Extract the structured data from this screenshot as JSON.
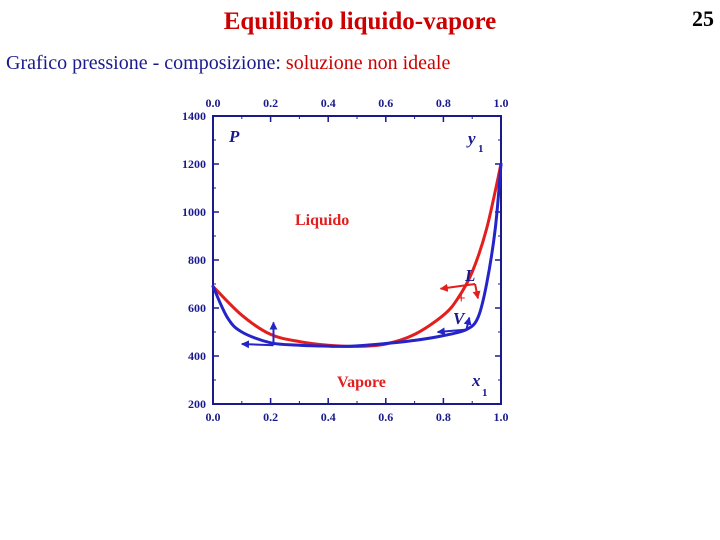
{
  "slide": {
    "title": "Equilibrio liquido-vapore",
    "page_number": "25",
    "subtitle_prefix": "Grafico pressione - composizione: ",
    "subtitle_highlight": "soluzione non ideale"
  },
  "colors": {
    "title": "#cc0000",
    "subtitle": "#1a1a8c",
    "liquid_curve": "#e31e1e",
    "vapor_curve": "#2424c8",
    "axis_tick_labels": "#1a1a8c",
    "region_label": "#e31e1e"
  },
  "chart_data": {
    "type": "line",
    "x_bottom_label": "x",
    "x_bottom_subscript": "1",
    "x_top_label": "y",
    "x_top_subscript": "1",
    "ylabel": "P",
    "xlim": [
      0.0,
      1.0
    ],
    "ylim": [
      200,
      1400
    ],
    "x_ticks": [
      "0.0",
      "0.2",
      "0.4",
      "0.6",
      "0.8",
      "1.0"
    ],
    "y_ticks": [
      "200",
      "400",
      "600",
      "800",
      "1000",
      "1200",
      "1400"
    ],
    "region_labels": {
      "liquid": "Liquido",
      "vapor": "Vapore"
    },
    "annotations": {
      "L": "L",
      "V": "V",
      "plus": "+"
    },
    "series": [
      {
        "key": "liquid",
        "x": [
          0.0,
          0.1,
          0.2,
          0.3,
          0.4,
          0.5,
          0.6,
          0.7,
          0.8,
          0.85,
          0.9,
          0.95,
          1.0
        ],
        "y": [
          690,
          570,
          490,
          460,
          445,
          440,
          450,
          490,
          570,
          640,
          750,
          930,
          1200
        ]
      },
      {
        "key": "vapor",
        "x": [
          0.0,
          0.05,
          0.1,
          0.2,
          0.3,
          0.4,
          0.45,
          0.5,
          0.6,
          0.7,
          0.8,
          0.88,
          0.92,
          0.95,
          0.98,
          1.0
        ],
        "y": [
          690,
          560,
          500,
          455,
          445,
          441,
          440,
          442,
          452,
          465,
          485,
          510,
          560,
          700,
          930,
          1200
        ]
      }
    ],
    "arrows": [
      {
        "x": [
          0.91,
          0.79
        ],
        "y": [
          700,
          680
        ]
      },
      {
        "x": [
          0.91,
          0.92
        ],
        "y": [
          700,
          640
        ]
      },
      {
        "x": [
          0.88,
          0.78
        ],
        "y": [
          510,
          500
        ]
      },
      {
        "x": [
          0.88,
          0.89
        ],
        "y": [
          510,
          560
        ]
      },
      {
        "x": [
          0.21,
          0.1
        ],
        "y": [
          445,
          450
        ]
      },
      {
        "x": [
          0.21,
          0.21
        ],
        "y": [
          445,
          540
        ]
      }
    ]
  }
}
